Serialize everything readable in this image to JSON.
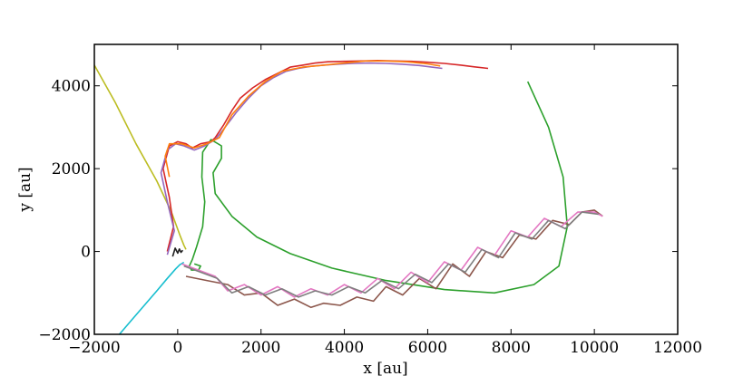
{
  "chart_data": {
    "type": "line",
    "title": "",
    "xlabel": "x [au]",
    "ylabel": "y [au]",
    "xlim": [
      -2000,
      12000
    ],
    "ylim": [
      -2000,
      5000
    ],
    "xticks": [
      -2000,
      0,
      2000,
      4000,
      6000,
      8000,
      10000,
      12000
    ],
    "yticks": [
      -2000,
      0,
      2000,
      4000
    ],
    "grid": false,
    "series": [
      {
        "color": "#bcbd22",
        "x": [
          -2000,
          -1500,
          -1000,
          -500,
          -150,
          50,
          150,
          200
        ],
        "y": [
          4500,
          3600,
          2600,
          1700,
          950,
          400,
          150,
          50
        ]
      },
      {
        "color": "#17becf",
        "x": [
          -1400,
          -1100,
          -800,
          -500,
          -250,
          -50,
          50,
          150
        ],
        "y": [
          -2000,
          -1650,
          -1300,
          -950,
          -650,
          -420,
          -320,
          -260
        ]
      },
      {
        "color": "#2ca02c",
        "x": [
          8400,
          8900,
          9250,
          9350,
          9150,
          8550,
          7600,
          6400,
          5000,
          3700,
          2700,
          1900,
          1300,
          900,
          850,
          1050,
          1050,
          800,
          600,
          580,
          650,
          600,
          450,
          350,
          280,
          330,
          500,
          550,
          400
        ],
        "y": [
          4100,
          3000,
          1800,
          600,
          -350,
          -800,
          -1000,
          -920,
          -700,
          -400,
          -50,
          350,
          850,
          1400,
          1900,
          2250,
          2550,
          2700,
          2400,
          1800,
          1200,
          600,
          100,
          -200,
          -350,
          -450,
          -450,
          -350,
          -300
        ]
      },
      {
        "color": "#d62728",
        "x": [
          -250,
          -100,
          -200,
          -350,
          -200,
          0,
          200,
          350,
          550,
          800,
          900,
          1100,
          1300,
          1500,
          1800,
          2100,
          2400,
          2700,
          3000,
          3300,
          3600,
          4000,
          4400,
          4800,
          5200,
          5600,
          6000,
          6400,
          6800,
          7100,
          7450
        ],
        "y": [
          0,
          600,
          1300,
          2000,
          2550,
          2650,
          2600,
          2500,
          2600,
          2650,
          2750,
          3050,
          3400,
          3700,
          3950,
          4150,
          4300,
          4450,
          4500,
          4550,
          4580,
          4590,
          4600,
          4610,
          4600,
          4590,
          4570,
          4540,
          4500,
          4460,
          4420
        ]
      },
      {
        "color": "#9467bd",
        "x": [
          -250,
          -80,
          -250,
          -400,
          -250,
          -50,
          150,
          400,
          650,
          900,
          1100,
          1400,
          1700,
          2000,
          2300,
          2600,
          2900,
          3200,
          3500,
          3800,
          4200,
          4600,
          5000,
          5400,
          5800,
          6100,
          6350
        ],
        "y": [
          -80,
          500,
          1200,
          1900,
          2450,
          2600,
          2550,
          2450,
          2550,
          2700,
          2950,
          3350,
          3700,
          4000,
          4200,
          4350,
          4420,
          4470,
          4500,
          4520,
          4540,
          4550,
          4540,
          4520,
          4490,
          4450,
          4420
        ]
      },
      {
        "color": "#ff7f0e",
        "x": [
          -200,
          -300,
          -200,
          100,
          400,
          700,
          1000,
          1300,
          1700,
          2100,
          2500,
          3000,
          3500,
          4000,
          4500,
          5000,
          5500,
          6000,
          6300
        ],
        "y": [
          1800,
          2300,
          2600,
          2600,
          2500,
          2600,
          2750,
          3300,
          3750,
          4100,
          4350,
          4450,
          4500,
          4550,
          4600,
          4600,
          4580,
          4530,
          4480
        ]
      },
      {
        "color": "#8c564b",
        "x": [
          200,
          700,
          1200,
          1600,
          2000,
          2400,
          2800,
          3200,
          3500,
          3900,
          4300,
          4700,
          5000,
          5400,
          5800,
          6200,
          6600,
          7000,
          7400,
          7800,
          8200,
          8600,
          9000,
          9400,
          9700,
          10000,
          10200
        ],
        "y": [
          -600,
          -700,
          -800,
          -1050,
          -1000,
          -1300,
          -1150,
          -1350,
          -1250,
          -1300,
          -1100,
          -1200,
          -850,
          -1050,
          -650,
          -900,
          -300,
          -600,
          0,
          -150,
          400,
          300,
          750,
          650,
          950,
          1000,
          850
        ]
      },
      {
        "color": "#e377c2",
        "x": [
          100,
          500,
          900,
          1200,
          1600,
          2000,
          2400,
          2800,
          3200,
          3600,
          4000,
          4400,
          4800,
          5200,
          5600,
          6000,
          6400,
          6800,
          7200,
          7600,
          8000,
          8400,
          8800,
          9200,
          9600,
          10000,
          10200
        ],
        "y": [
          -300,
          -450,
          -600,
          -950,
          -800,
          -1050,
          -850,
          -1100,
          -900,
          -1050,
          -800,
          -1000,
          -650,
          -900,
          -500,
          -750,
          -250,
          -450,
          100,
          -100,
          500,
          350,
          800,
          600,
          950,
          950,
          850
        ]
      },
      {
        "color": "#7f7f7f",
        "x": [
          150,
          550,
          950,
          1300,
          1700,
          2100,
          2500,
          2900,
          3300,
          3700,
          4100,
          4500,
          4900,
          5300,
          5700,
          6100,
          6500,
          6900,
          7300,
          7700,
          8100,
          8500,
          8900,
          9300,
          9700,
          10100
        ],
        "y": [
          -350,
          -500,
          -650,
          -1000,
          -850,
          -1050,
          -900,
          -1100,
          -950,
          -1050,
          -850,
          -1000,
          -700,
          -900,
          -550,
          -750,
          -300,
          -500,
          50,
          -150,
          450,
          300,
          750,
          550,
          950,
          900
        ]
      },
      {
        "color": "#1f1f1f",
        "x": [
          -120,
          -60,
          0,
          40,
          80,
          120
        ],
        "y": [
          -120,
          80,
          -40,
          60,
          -20,
          30
        ]
      }
    ]
  }
}
